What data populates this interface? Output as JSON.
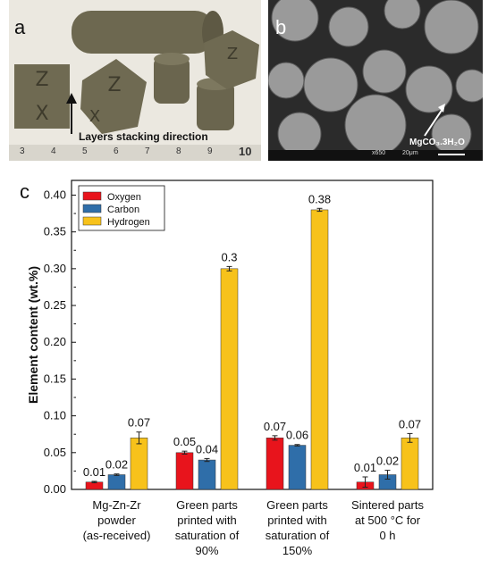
{
  "panels": {
    "a": "a",
    "b": "b",
    "c": "c"
  },
  "photo_a": {
    "annotation": "Layers stacking direction",
    "ruler_numbers": [
      "3",
      "4",
      "5",
      "6",
      "7",
      "8",
      "9",
      "10"
    ]
  },
  "photo_b": {
    "annotation": "MgCO₃.3H₂O",
    "scale_text": "x650",
    "scale_bar_label": "20μm"
  },
  "chart_data": {
    "type": "bar",
    "title": "",
    "xlabel": "",
    "ylabel": "Element content (wt.%)",
    "ylim": [
      0,
      0.42
    ],
    "yticks": [
      "0.00",
      "0.05",
      "0.10",
      "0.15",
      "0.20",
      "0.25",
      "0.30",
      "0.35",
      "0.40"
    ],
    "ytick_values": [
      0,
      0.05,
      0.1,
      0.15,
      0.2,
      0.25,
      0.3,
      0.35,
      0.4
    ],
    "grid": false,
    "legend": "top-left",
    "categories": [
      [
        "Mg-Zn-Zr",
        "powder",
        "(as-received)"
      ],
      [
        "Green parts",
        "printed with",
        "saturation of",
        "90%"
      ],
      [
        "Green parts",
        "printed with",
        "saturation of",
        "150%"
      ],
      [
        "Sintered parts",
        "at 500 °C for",
        "0 h"
      ]
    ],
    "series": [
      {
        "name": "Oxygen",
        "color": "#e8141c",
        "values": [
          0.01,
          0.05,
          0.07,
          0.01
        ],
        "errors": [
          0.001,
          0.002,
          0.003,
          0.007
        ],
        "labels": [
          "0.01",
          "0.05",
          "0.07",
          "0.01"
        ]
      },
      {
        "name": "Carbon",
        "color": "#2f6ea9",
        "values": [
          0.02,
          0.04,
          0.06,
          0.02
        ],
        "errors": [
          0.001,
          0.002,
          0.001,
          0.006
        ],
        "labels": [
          "0.02",
          "0.04",
          "0.06",
          "0.02"
        ]
      },
      {
        "name": "Hydrogen",
        "color": "#f7c21b",
        "values": [
          0.07,
          0.3,
          0.38,
          0.07
        ],
        "errors": [
          0.008,
          0.003,
          0.002,
          0.006
        ],
        "labels": [
          "0.07",
          "0.3",
          "0.38",
          "0.07"
        ]
      }
    ]
  }
}
